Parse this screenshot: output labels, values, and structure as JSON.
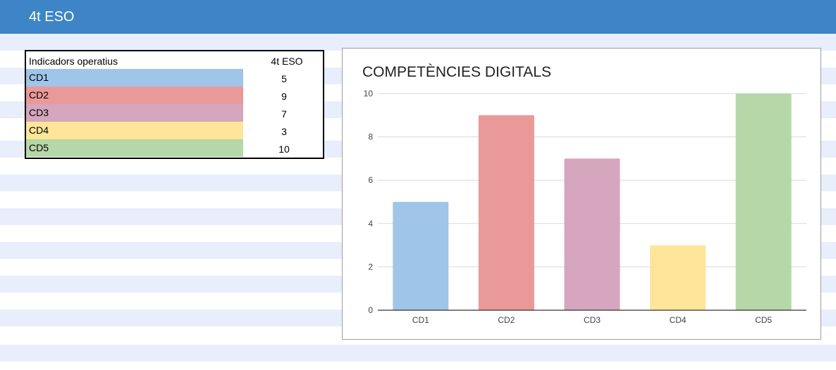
{
  "header": {
    "title": "4t ESO"
  },
  "table": {
    "header_label": "Indicadors operatius",
    "header_column": "4t ESO",
    "rows": [
      {
        "name": "CD1",
        "value": "5",
        "color": "#9fc5e8"
      },
      {
        "name": "CD2",
        "value": "9",
        "color": "#ea9999"
      },
      {
        "name": "CD3",
        "value": "7",
        "color": "#d5a6bd"
      },
      {
        "name": "CD4",
        "value": "3",
        "color": "#ffe599"
      },
      {
        "name": "CD5",
        "value": "10",
        "color": "#b6d7a8"
      }
    ]
  },
  "colors": {
    "header": "#3d85c6",
    "band": "#e8eefb"
  },
  "chart_data": {
    "type": "bar",
    "title": "COMPETÈNCIES DIGITALS",
    "categories": [
      "CD1",
      "CD2",
      "CD3",
      "CD4",
      "CD5"
    ],
    "values": [
      5,
      9,
      7,
      3,
      10
    ],
    "colors": [
      "#9fc5e8",
      "#ea9999",
      "#d5a6bd",
      "#ffe599",
      "#b6d7a8"
    ],
    "ylim": [
      0,
      10
    ],
    "yticks": [
      0,
      2,
      4,
      6,
      8,
      10
    ],
    "grid": true,
    "legend": "none",
    "xlabel": "",
    "ylabel": ""
  }
}
